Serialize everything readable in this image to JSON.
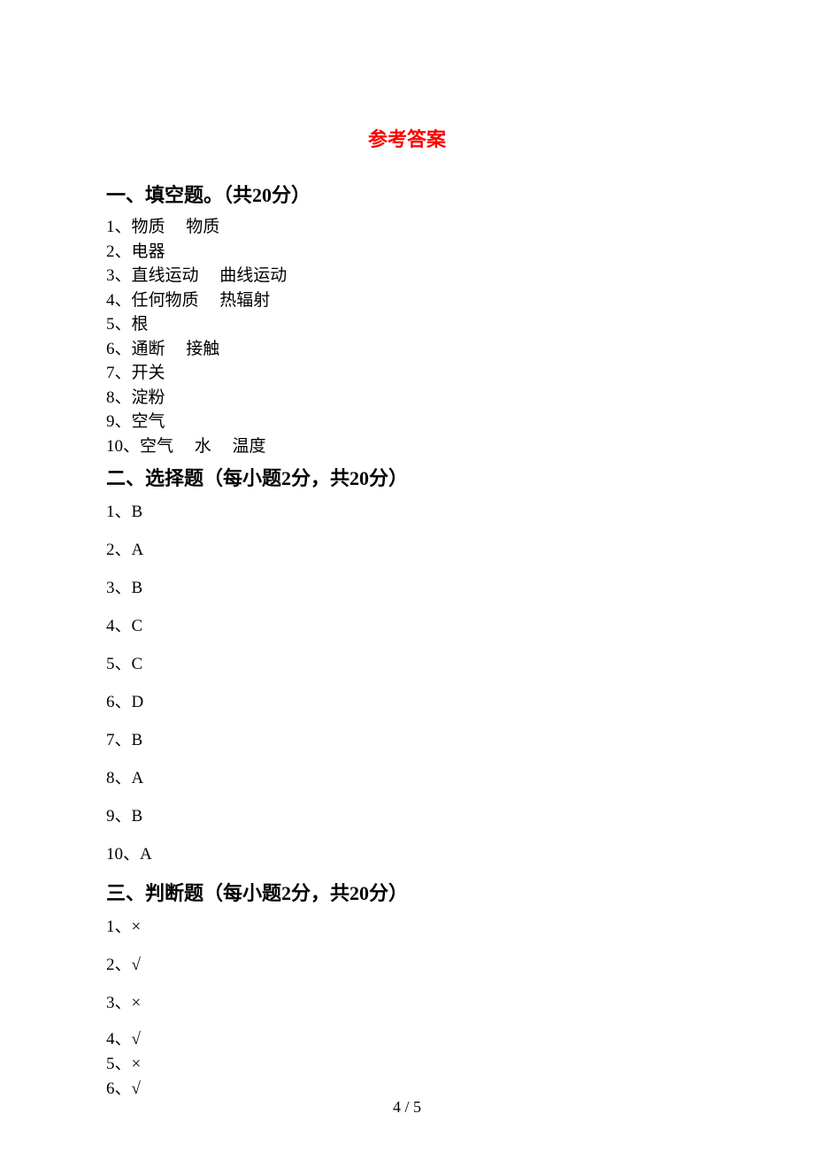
{
  "title": "参考答案",
  "sections": [
    {
      "header": "一、填空题。（共20分）",
      "spaced": false,
      "items": [
        "1、物质     物质",
        "2、电器",
        "3、直线运动     曲线运动",
        "4、任何物质     热辐射",
        "5、根",
        "6、通断     接触",
        "7、开关",
        "8、淀粉",
        "9、空气",
        "10、空气     水     温度"
      ]
    },
    {
      "header": "二、选择题（每小题2分，共20分）",
      "spaced": true,
      "items": [
        "1、B",
        "2、A",
        "3、B",
        "4、C",
        "5、C",
        "6、D",
        "7、B",
        "8、A",
        "9、B",
        "10、A"
      ]
    },
    {
      "header": "三、判断题（每小题2分，共20分）",
      "spaced": true,
      "items": [
        "1、×",
        "2、√",
        "3、×",
        "4、√",
        "5、×",
        "6、√"
      ]
    }
  ],
  "pageNumber": "4 / 5",
  "colors": {
    "title": "#ff0000",
    "text": "#000000",
    "background": "#ffffff"
  }
}
